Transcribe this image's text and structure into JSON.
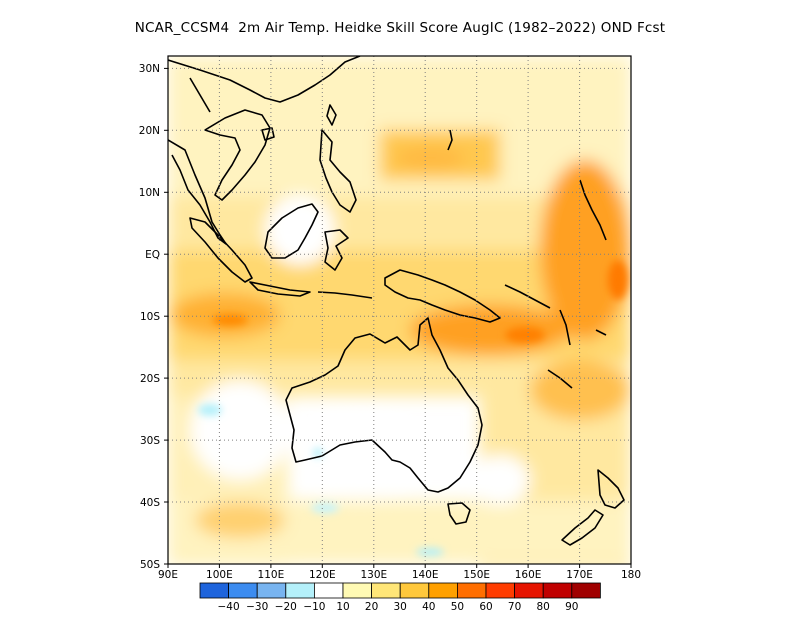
{
  "title": "NCAR_CCSM4  2m Air Temp. Heidke Skill Score AugIC (1982–2022) OND Fcst",
  "map": {
    "region": "Maritime Continent / Australia / Western Pacific",
    "lon_range": [
      90,
      180
    ],
    "lat_range": [
      -50,
      32
    ],
    "lat_labels": [
      {
        "lat": 30,
        "text": "30N"
      },
      {
        "lat": 20,
        "text": "20N"
      },
      {
        "lat": 10,
        "text": "10N"
      },
      {
        "lat": 0,
        "text": "EQ"
      },
      {
        "lat": -10,
        "text": "10S"
      },
      {
        "lat": -20,
        "text": "20S"
      },
      {
        "lat": -30,
        "text": "30S"
      },
      {
        "lat": -40,
        "text": "40S"
      },
      {
        "lat": -50,
        "text": "50S"
      }
    ],
    "lon_labels": [
      {
        "lon": 90,
        "text": "90E"
      },
      {
        "lon": 100,
        "text": "100E"
      },
      {
        "lon": 110,
        "text": "110E"
      },
      {
        "lon": 120,
        "text": "120E"
      },
      {
        "lon": 130,
        "text": "130E"
      },
      {
        "lon": 140,
        "text": "140E"
      },
      {
        "lon": 150,
        "text": "150E"
      },
      {
        "lon": 160,
        "text": "160E"
      },
      {
        "lon": 170,
        "text": "170E"
      },
      {
        "lon": 180,
        "text": "180"
      }
    ],
    "gridlines": "dotted"
  },
  "legend": {
    "labels": [
      "-40",
      "-30",
      "-20",
      "-10",
      "10",
      "20",
      "30",
      "40",
      "50",
      "60",
      "70",
      "80",
      "90"
    ],
    "colors": [
      "#1e64dc",
      "#3c8cf0",
      "#78b4f0",
      "#b4f0fa",
      "#ffffff",
      "#fffab4",
      "#ffe678",
      "#ffc83c",
      "#ffa000",
      "#ff6e00",
      "#ff3c00",
      "#e61400",
      "#c00000",
      "#a00000"
    ]
  }
}
